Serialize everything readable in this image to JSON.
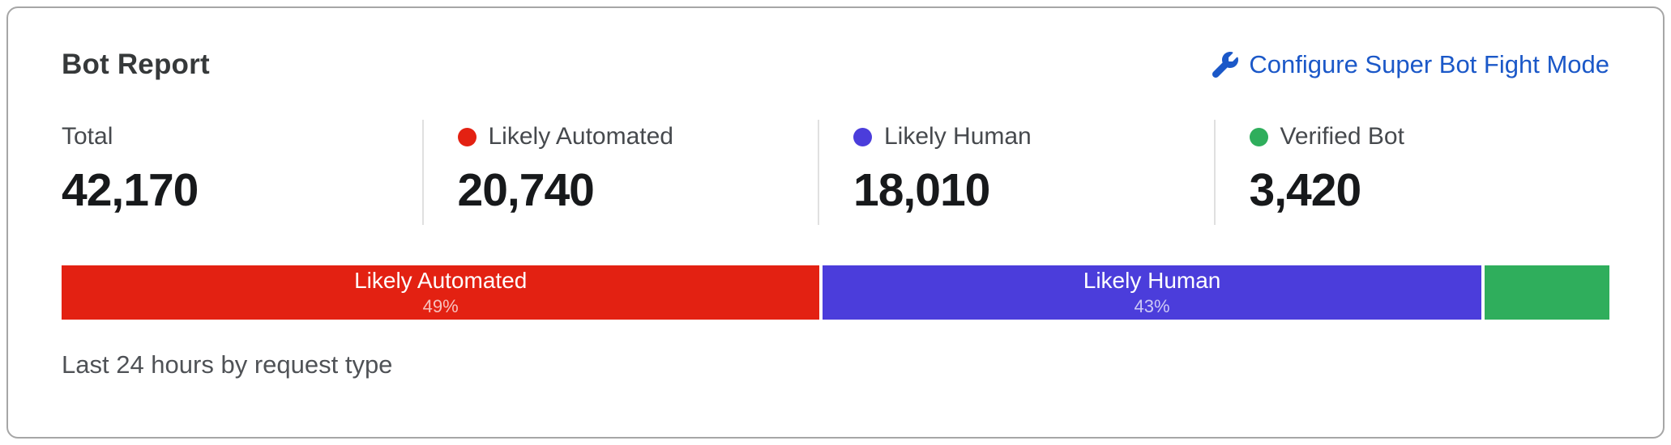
{
  "card": {
    "title": "Bot Report",
    "configure_link": {
      "label": "Configure Super Bot Fight Mode",
      "icon": "wrench-icon",
      "color": "#1b58c8"
    },
    "stats": [
      {
        "label": "Total",
        "value": "42,170",
        "dot_color": null
      },
      {
        "label": "Likely Automated",
        "value": "20,740",
        "dot_color": "#e32112"
      },
      {
        "label": "Likely Human",
        "value": "18,010",
        "dot_color": "#4b3ddb"
      },
      {
        "label": "Verified Bot",
        "value": "3,420",
        "dot_color": "#2fae5c"
      }
    ],
    "caption": "Last 24 hours by request type"
  },
  "chart_data": {
    "type": "bar",
    "subtype": "stacked-percentage-bar",
    "title": "Bot Report",
    "note": "Last 24 hours by request type",
    "total": 42170,
    "categories": [
      "Likely Automated",
      "Likely Human",
      "Verified Bot"
    ],
    "values": [
      20740,
      18010,
      3420
    ],
    "segments": [
      {
        "label": "Likely Automated",
        "value": 20740,
        "percent_exact": 49.18,
        "display_percent": "49%",
        "color": "#e32112",
        "show_label": true
      },
      {
        "label": "Likely Human",
        "value": 18010,
        "percent_exact": 42.71,
        "display_percent": "43%",
        "color": "#4b3ddb",
        "show_label": true
      },
      {
        "label": "Verified Bot",
        "value": 3420,
        "percent_exact": 8.11,
        "display_percent": "",
        "color": "#2fae5c",
        "show_label": false
      }
    ]
  }
}
